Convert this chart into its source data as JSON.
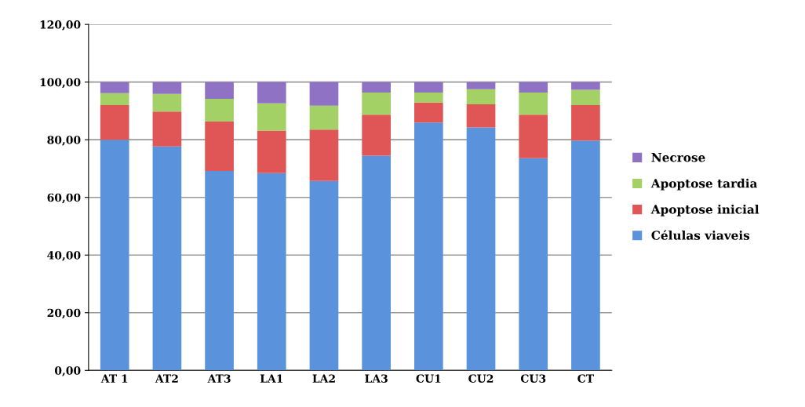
{
  "chart_data": {
    "type": "bar",
    "stacked": true,
    "categories": [
      "AT 1",
      "AT2",
      "AT3",
      "LA1",
      "LA2",
      "LA3",
      "CU1",
      "CU2",
      "CU3",
      "CT"
    ],
    "series": [
      {
        "name": "Células viaveis",
        "color": "#5a93dc",
        "values": [
          80.0,
          77.7,
          69.2,
          68.4,
          65.7,
          74.5,
          86.0,
          84.3,
          73.6,
          79.7
        ]
      },
      {
        "name": "Apoptose inicial",
        "color": "#e05555",
        "values": [
          12.0,
          12.1,
          17.1,
          14.8,
          17.8,
          14.2,
          6.9,
          8.0,
          15.1,
          12.3
        ]
      },
      {
        "name": "Apoptose tardia",
        "color": "#a3d165",
        "values": [
          4.2,
          6.1,
          7.9,
          9.4,
          8.3,
          7.7,
          3.5,
          5.2,
          7.7,
          5.3
        ]
      },
      {
        "name": "Necrose",
        "color": "#8f72c4",
        "values": [
          3.8,
          4.1,
          5.8,
          7.4,
          8.2,
          3.6,
          3.6,
          2.5,
          3.6,
          2.7
        ]
      }
    ],
    "ylim": [
      0,
      120
    ],
    "yticks": [
      {
        "value": 0,
        "label": "0,00"
      },
      {
        "value": 20,
        "label": "20,00"
      },
      {
        "value": 40,
        "label": "40,00"
      },
      {
        "value": 60,
        "label": "60,00"
      },
      {
        "value": 80,
        "label": "80,00"
      },
      {
        "value": 100,
        "label": "100,00"
      },
      {
        "value": 120,
        "label": "120,00"
      }
    ],
    "grid": "y",
    "legend": "right"
  }
}
